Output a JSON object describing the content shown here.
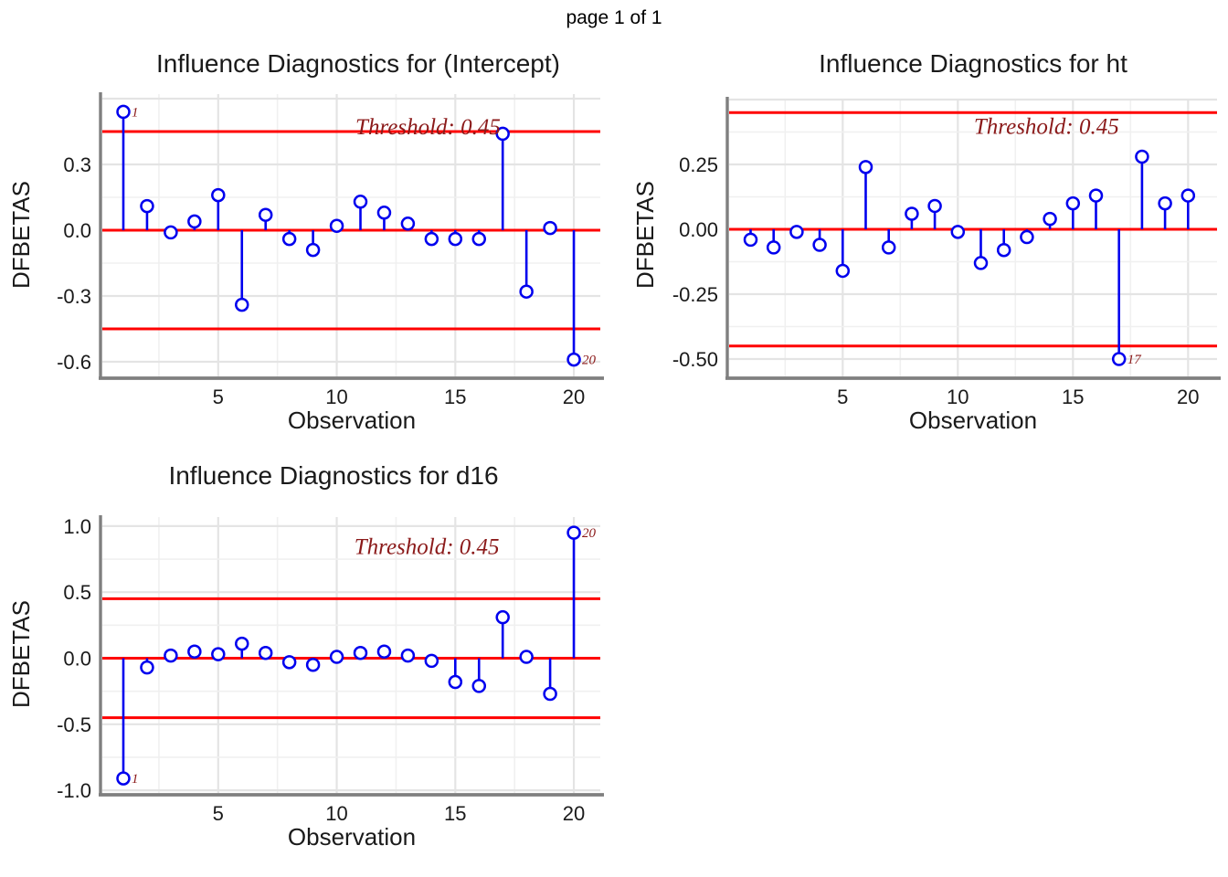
{
  "page_header": "page 1 of 1",
  "colors": {
    "stem_blue": "#0000EE",
    "reference_red": "#FF0000",
    "annotation_darkred": "#8B1A1A",
    "axis_gray": "#7F7F7F",
    "grid_major": "#E4E4E4",
    "grid_minor": "#F0F0F0"
  },
  "chart_data": [
    {
      "type": "stem",
      "title": "Influence Diagnostics for (Intercept)",
      "xlabel": "Observation",
      "ylabel": "DFBETAS",
      "x": [
        1,
        2,
        3,
        4,
        5,
        6,
        7,
        8,
        9,
        10,
        11,
        12,
        13,
        14,
        15,
        16,
        17,
        18,
        19,
        20
      ],
      "values": [
        0.54,
        0.11,
        -0.01,
        0.04,
        0.16,
        -0.34,
        0.07,
        -0.04,
        -0.09,
        0.02,
        0.13,
        0.08,
        0.03,
        -0.04,
        -0.04,
        -0.04,
        0.44,
        -0.28,
        0.01,
        -0.59
      ],
      "threshold": 0.45,
      "threshold_label": "Threshold: 0.45",
      "threshold_label_at": {
        "x": 13.85,
        "y": 0.475
      },
      "zero_line": 0,
      "yticks": [
        0.3,
        0.0,
        -0.3,
        -0.6
      ],
      "ytick_labels": [
        "0.3",
        "0.0",
        "-0.3",
        "-0.6"
      ],
      "xticks": [
        5,
        10,
        15,
        20
      ],
      "xtick_labels": [
        "5",
        "10",
        "15",
        "20"
      ],
      "ylim": [
        -0.67,
        0.62
      ],
      "xlim": [
        0.1,
        21.1
      ],
      "grid": true,
      "legend": "none",
      "annotations": [
        {
          "x": 1,
          "label": "1"
        },
        {
          "x": 20,
          "label": "20"
        }
      ]
    },
    {
      "type": "stem",
      "title": "Influence Diagnostics for ht",
      "xlabel": "Observation",
      "ylabel": "DFBETAS",
      "x": [
        1,
        2,
        3,
        4,
        5,
        6,
        7,
        8,
        9,
        10,
        11,
        12,
        13,
        14,
        15,
        16,
        17,
        18,
        19,
        20
      ],
      "values": [
        -0.04,
        -0.07,
        -0.01,
        -0.06,
        -0.16,
        0.24,
        -0.07,
        0.06,
        0.09,
        -0.01,
        -0.13,
        -0.08,
        -0.03,
        0.04,
        0.1,
        0.13,
        -0.5,
        0.28,
        0.1,
        0.13
      ],
      "threshold": 0.45,
      "threshold_label": "Threshold: 0.45",
      "threshold_label_at": {
        "x": 13.85,
        "y": 0.4
      },
      "zero_line": 0,
      "yticks": [
        0.25,
        0.0,
        -0.25,
        -0.5
      ],
      "ytick_labels": [
        "0.25",
        "0.00",
        "-0.25",
        "-0.50"
      ],
      "xticks": [
        5,
        10,
        15,
        20
      ],
      "xtick_labels": [
        "5",
        "10",
        "15",
        "20"
      ],
      "ylim": [
        -0.57,
        0.51
      ],
      "xlim": [
        0.1,
        21.2
      ],
      "grid": true,
      "legend": "none",
      "annotations": [
        {
          "x": 17,
          "label": "17"
        }
      ]
    },
    {
      "type": "stem",
      "title": "Influence Diagnostics for d16",
      "xlabel": "Observation",
      "ylabel": "DFBETAS",
      "x": [
        1,
        2,
        3,
        4,
        5,
        6,
        7,
        8,
        9,
        10,
        11,
        12,
        13,
        14,
        15,
        16,
        17,
        18,
        19,
        20
      ],
      "values": [
        -0.91,
        -0.07,
        0.02,
        0.05,
        0.03,
        0.11,
        0.04,
        -0.03,
        -0.05,
        0.01,
        0.04,
        0.05,
        0.02,
        -0.02,
        -0.18,
        -0.21,
        0.31,
        0.01,
        -0.27,
        0.95
      ],
      "threshold": 0.45,
      "threshold_label": "Threshold: 0.45",
      "threshold_label_at": {
        "x": 13.8,
        "y": 0.85
      },
      "zero_line": 0,
      "yticks": [
        1.0,
        0.5,
        0.0,
        -0.5,
        -1.0
      ],
      "ytick_labels": [
        "1.0",
        "0.5",
        "0.0",
        "-0.5",
        "-1.0"
      ],
      "xticks": [
        5,
        10,
        15,
        20
      ],
      "xtick_labels": [
        "5",
        "10",
        "15",
        "20"
      ],
      "ylim": [
        -1.02,
        1.07
      ],
      "xlim": [
        0.1,
        21.1
      ],
      "grid": true,
      "legend": "none",
      "annotations": [
        {
          "x": 1,
          "label": "1"
        },
        {
          "x": 20,
          "label": "20"
        }
      ]
    }
  ]
}
